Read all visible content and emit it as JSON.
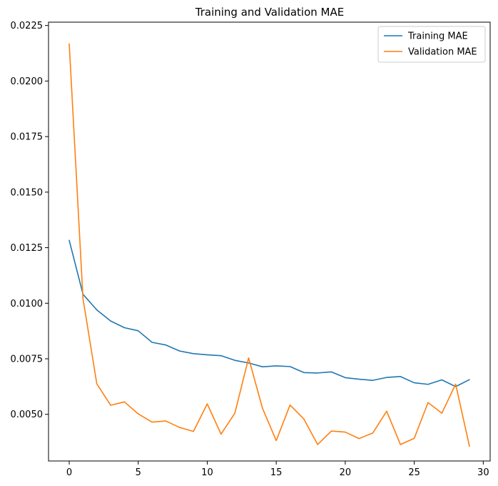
{
  "chart_data": {
    "type": "line",
    "title": "Training and Validation MAE",
    "xlabel": "",
    "ylabel": "",
    "xlim": [
      -1.5,
      30.5
    ],
    "ylim": [
      0.0029,
      0.02265
    ],
    "xticks": [
      0,
      5,
      10,
      15,
      20,
      25,
      30
    ],
    "yticks": [
      0.005,
      0.0075,
      0.01,
      0.0125,
      0.015,
      0.0175,
      0.02,
      0.0225
    ],
    "xtick_labels": [
      "0",
      "5",
      "10",
      "15",
      "20",
      "25",
      "30"
    ],
    "ytick_labels": [
      "0.0050",
      "0.0075",
      "0.0100",
      "0.0125",
      "0.0150",
      "0.0175",
      "0.0200",
      "0.0225"
    ],
    "grid": false,
    "legend_position": "top-right",
    "x": [
      0,
      1,
      2,
      3,
      4,
      5,
      6,
      7,
      8,
      9,
      10,
      11,
      12,
      13,
      14,
      15,
      16,
      17,
      18,
      19,
      20,
      21,
      22,
      23,
      24,
      25,
      26,
      27,
      28,
      29
    ],
    "series": [
      {
        "name": "Training MAE",
        "color": "#1f77b4",
        "values": [
          0.01283,
          0.0104,
          0.0097,
          0.0092,
          0.0089,
          0.00876,
          0.00824,
          0.00812,
          0.00785,
          0.00773,
          0.00768,
          0.00764,
          0.00743,
          0.00731,
          0.00714,
          0.00718,
          0.00715,
          0.00688,
          0.00686,
          0.00691,
          0.00665,
          0.00658,
          0.00653,
          0.00666,
          0.0067,
          0.00642,
          0.00635,
          0.00655,
          0.00625,
          0.00656
        ]
      },
      {
        "name": "Validation MAE",
        "color": "#ff7f0e",
        "values": [
          0.02167,
          0.0102,
          0.00637,
          0.00541,
          0.00556,
          0.00502,
          0.00465,
          0.0047,
          0.00441,
          0.00423,
          0.00547,
          0.00411,
          0.00505,
          0.00754,
          0.00528,
          0.00382,
          0.00542,
          0.00479,
          0.00364,
          0.00425,
          0.0042,
          0.00391,
          0.00416,
          0.00514,
          0.00364,
          0.00392,
          0.00553,
          0.00505,
          0.00636,
          0.00356
        ]
      }
    ]
  }
}
